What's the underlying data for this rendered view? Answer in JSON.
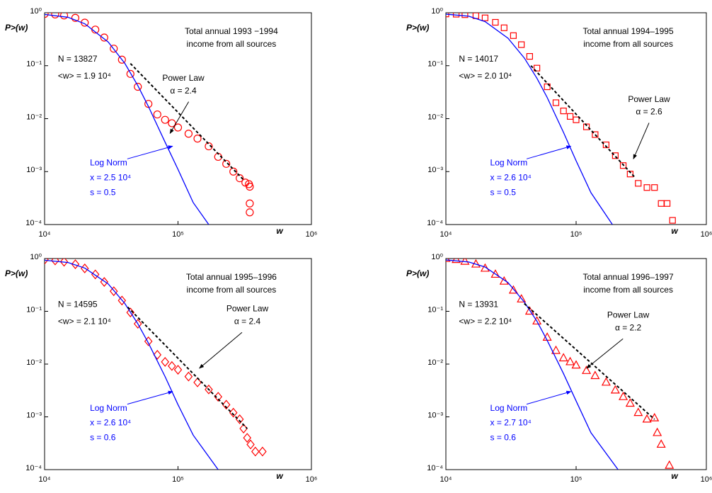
{
  "chart_data": [
    {
      "type": "scatter",
      "title": "Total annual 1993 −1994",
      "subtitle": "income from all sources",
      "x_label": "w",
      "y_label": "P>(w)",
      "xscale": "log",
      "yscale": "log",
      "xlim": [
        10000,
        1000000
      ],
      "ylim": [
        0.0001,
        1
      ],
      "xticks": [
        {
          "value": 10000,
          "label": "10⁴"
        },
        {
          "value": 100000,
          "label": "10⁵"
        },
        {
          "value": 1000000,
          "label": "10⁶"
        }
      ],
      "yticks": [
        {
          "value": 0.0001,
          "label": "10⁻⁴"
        },
        {
          "value": 0.001,
          "label": "10⁻³"
        },
        {
          "value": 0.01,
          "label": "10⁻²"
        },
        {
          "value": 0.1,
          "label": "10⁻¹"
        },
        {
          "value": 1,
          "label": "10⁰"
        }
      ],
      "annotations": {
        "n": "N = 13827",
        "mean": "<w> = 1.9 10⁴",
        "power_law": "Power Law",
        "alpha": "α = 2.4",
        "log_norm": "Log Norm",
        "x": "x = 2.5 10⁴",
        "s": "s = 0.5"
      },
      "series": [
        {
          "color": "#ff0000",
          "marker": "circle",
          "x": [
            10000,
            12000,
            14000,
            17000,
            20000,
            24000,
            28000,
            33000,
            38000,
            44000,
            50000,
            60000,
            70000,
            80000,
            90000,
            100000,
            120000,
            140000,
            170000,
            200000,
            230000,
            260000,
            290000,
            320000,
            340000,
            345000,
            345000,
            345000
          ],
          "values": [
            0.95,
            0.93,
            0.89,
            0.8,
            0.65,
            0.48,
            0.34,
            0.21,
            0.13,
            0.07,
            0.04,
            0.019,
            0.012,
            0.0095,
            0.0082,
            0.0068,
            0.0052,
            0.0042,
            0.003,
            0.0019,
            0.0014,
            0.001,
            0.00075,
            0.00062,
            0.00058,
            0.00052,
            0.00025,
            0.00017
          ]
        },
        {
          "color": "#0000ff",
          "style": "solid",
          "x": [
            10000,
            15000,
            20000,
            30000,
            40000,
            50000,
            60000,
            80000,
            100000,
            130000,
            170000
          ],
          "values": [
            0.93,
            0.82,
            0.62,
            0.28,
            0.11,
            0.042,
            0.017,
            0.0036,
            0.0011,
            0.00026,
            0.0001
          ]
        },
        {
          "color": "#000000",
          "style": "dashed",
          "x": [
            44000,
            310000
          ],
          "values": [
            0.11,
            0.0007
          ]
        }
      ]
    },
    {
      "type": "scatter",
      "title": "Total annual 1994–1995",
      "subtitle": "income from all sources",
      "x_label": "w",
      "y_label": "P>(w)",
      "xscale": "log",
      "yscale": "log",
      "xlim": [
        10000,
        1000000
      ],
      "ylim": [
        0.0001,
        1
      ],
      "xticks": [
        {
          "value": 10000,
          "label": "10⁴"
        },
        {
          "value": 100000,
          "label": "10⁵"
        },
        {
          "value": 1000000,
          "label": "10⁶"
        }
      ],
      "yticks": [
        {
          "value": 0.0001,
          "label": "10⁻⁴"
        },
        {
          "value": 0.001,
          "label": "10⁻³"
        },
        {
          "value": 0.01,
          "label": "10⁻²"
        },
        {
          "value": 0.1,
          "label": "10⁻¹"
        },
        {
          "value": 1,
          "label": "10⁰"
        }
      ],
      "annotations": {
        "n": "N = 14017",
        "mean": "<w> = 2.0 10⁴",
        "power_law": "Power Law",
        "alpha": "α = 2.6",
        "log_norm": "Log Norm",
        "x": "x = 2.6 10⁴",
        "s": "s = 0.5"
      },
      "series": [
        {
          "color": "#ff0000",
          "marker": "square",
          "x": [
            10000,
            12000,
            14000,
            17000,
            20000,
            24000,
            28000,
            33000,
            38000,
            44000,
            50000,
            60000,
            70000,
            80000,
            90000,
            100000,
            120000,
            140000,
            170000,
            200000,
            230000,
            260000,
            300000,
            350000,
            400000,
            450000,
            500000,
            550000
          ],
          "values": [
            0.95,
            0.94,
            0.92,
            0.88,
            0.8,
            0.66,
            0.52,
            0.37,
            0.25,
            0.15,
            0.09,
            0.04,
            0.02,
            0.014,
            0.011,
            0.0095,
            0.007,
            0.005,
            0.0032,
            0.002,
            0.0013,
            0.0009,
            0.0006,
            0.0005,
            0.0005,
            0.00025,
            0.00025,
            0.00012
          ]
        },
        {
          "color": "#0000ff",
          "style": "solid",
          "x": [
            10000,
            15000,
            20000,
            30000,
            40000,
            50000,
            60000,
            80000,
            100000,
            130000,
            190000
          ],
          "values": [
            0.94,
            0.86,
            0.68,
            0.33,
            0.14,
            0.058,
            0.025,
            0.0055,
            0.0016,
            0.0004,
            0.0001
          ]
        },
        {
          "color": "#000000",
          "style": "dashed",
          "x": [
            45000,
            280000
          ],
          "values": [
            0.1,
            0.0008
          ]
        }
      ]
    },
    {
      "type": "scatter",
      "title": "Total annual 1995–1996",
      "subtitle": "income from all sources",
      "x_label": "w",
      "y_label": "P>(w)",
      "xscale": "log",
      "yscale": "log",
      "xlim": [
        10000,
        1000000
      ],
      "ylim": [
        0.0001,
        1
      ],
      "xticks": [
        {
          "value": 10000,
          "label": "10⁴"
        },
        {
          "value": 100000,
          "label": "10⁵"
        },
        {
          "value": 1000000,
          "label": "10⁶"
        }
      ],
      "yticks": [
        {
          "value": 0.0001,
          "label": "10⁻⁴"
        },
        {
          "value": 0.001,
          "label": "10⁻³"
        },
        {
          "value": 0.01,
          "label": "10⁻²"
        },
        {
          "value": 0.1,
          "label": "10⁻¹"
        },
        {
          "value": 1,
          "label": "10⁰"
        }
      ],
      "annotations": {
        "n": "N = 14595",
        "mean": "<w> = 2.1 10⁴",
        "power_law": "Power Law",
        "alpha": "α = 2.4",
        "log_norm": "Log Norm",
        "x": "x = 2.6 10⁴",
        "s": "s = 0.6"
      },
      "series": [
        {
          "color": "#ff0000",
          "marker": "diamond",
          "x": [
            10000,
            12000,
            14000,
            17000,
            20000,
            24000,
            28000,
            33000,
            38000,
            44000,
            50000,
            60000,
            70000,
            80000,
            90000,
            100000,
            120000,
            140000,
            170000,
            200000,
            230000,
            260000,
            290000,
            310000,
            330000,
            350000,
            380000,
            430000
          ],
          "values": [
            0.95,
            0.92,
            0.87,
            0.78,
            0.65,
            0.5,
            0.36,
            0.24,
            0.16,
            0.095,
            0.058,
            0.027,
            0.015,
            0.011,
            0.0092,
            0.0078,
            0.0058,
            0.0045,
            0.0033,
            0.0024,
            0.0017,
            0.0012,
            0.0009,
            0.0006,
            0.0004,
            0.0003,
            0.00022,
            0.00022
          ]
        },
        {
          "color": "#0000ff",
          "style": "solid",
          "x": [
            10000,
            15000,
            20000,
            30000,
            40000,
            50000,
            60000,
            80000,
            100000,
            130000,
            200000
          ],
          "values": [
            0.93,
            0.84,
            0.66,
            0.33,
            0.14,
            0.058,
            0.025,
            0.0058,
            0.0017,
            0.00045,
            0.0001
          ]
        },
        {
          "color": "#000000",
          "style": "dashed",
          "x": [
            42000,
            330000
          ],
          "values": [
            0.12,
            0.0006
          ]
        }
      ]
    },
    {
      "type": "scatter",
      "title": "Total annual 1996–1997",
      "subtitle": "income from all sources",
      "x_label": "w",
      "y_label": "P>(w)",
      "xscale": "log",
      "yscale": "log",
      "xlim": [
        10000,
        1000000
      ],
      "ylim": [
        0.0001,
        1
      ],
      "xticks": [
        {
          "value": 10000,
          "label": "10⁴"
        },
        {
          "value": 100000,
          "label": "10⁵"
        },
        {
          "value": 1000000,
          "label": "10⁶"
        }
      ],
      "yticks": [
        {
          "value": 0.0001,
          "label": "10⁻⁴"
        },
        {
          "value": 0.001,
          "label": "10⁻³"
        },
        {
          "value": 0.01,
          "label": "10⁻²"
        },
        {
          "value": 0.1,
          "label": "10⁻¹"
        },
        {
          "value": 1,
          "label": "10⁰"
        }
      ],
      "annotations": {
        "n": "N = 13931",
        "mean": "<w> = 2.2 10⁴",
        "power_law": "Power Law",
        "alpha": "α = 2.2",
        "log_norm": "Log Norm",
        "x": "x = 2.7 10⁴",
        "s": "s = 0.6"
      },
      "series": [
        {
          "color": "#ff0000",
          "marker": "triangle",
          "x": [
            10000,
            12000,
            14000,
            17000,
            20000,
            24000,
            28000,
            33000,
            38000,
            44000,
            50000,
            60000,
            70000,
            80000,
            90000,
            100000,
            120000,
            140000,
            170000,
            200000,
            230000,
            260000,
            300000,
            350000,
            400000,
            420000,
            450000,
            520000
          ],
          "values": [
            1.0,
            0.95,
            0.88,
            0.78,
            0.65,
            0.5,
            0.37,
            0.25,
            0.17,
            0.1,
            0.065,
            0.032,
            0.018,
            0.013,
            0.011,
            0.0095,
            0.0075,
            0.006,
            0.0045,
            0.0032,
            0.0024,
            0.0018,
            0.0012,
            0.0009,
            0.00095,
            0.0005,
            0.0003,
            0.00012
          ]
        },
        {
          "color": "#0000ff",
          "style": "solid",
          "x": [
            10000,
            15000,
            20000,
            30000,
            40000,
            50000,
            60000,
            80000,
            100000,
            130000,
            210000
          ],
          "values": [
            0.94,
            0.86,
            0.69,
            0.35,
            0.15,
            0.065,
            0.028,
            0.0066,
            0.002,
            0.0005,
            0.0001
          ]
        },
        {
          "color": "#000000",
          "style": "dashed",
          "x": [
            40000,
            400000
          ],
          "values": [
            0.14,
            0.0009
          ]
        }
      ]
    }
  ]
}
